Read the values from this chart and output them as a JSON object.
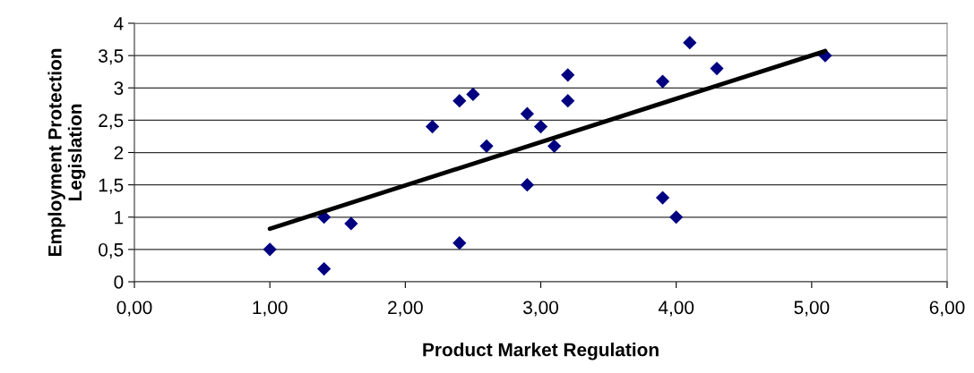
{
  "chart_data": {
    "type": "scatter",
    "xlabel": "Product Market Regulation",
    "ylabel": "Employment Protection\nLegislation",
    "xlim": [
      0,
      6
    ],
    "ylim": [
      0,
      4
    ],
    "xticks": [
      {
        "value": 0,
        "label": "0,00"
      },
      {
        "value": 1,
        "label": "1,00"
      },
      {
        "value": 2,
        "label": "2,00"
      },
      {
        "value": 3,
        "label": "3,00"
      },
      {
        "value": 4,
        "label": "4,00"
      },
      {
        "value": 5,
        "label": "5,00"
      },
      {
        "value": 6,
        "label": "6,00"
      }
    ],
    "yticks": [
      0,
      {
        "value": 0.5,
        "label": "0,5"
      },
      1,
      {
        "value": 1.5,
        "label": "1,5"
      },
      2,
      {
        "value": 2.5,
        "label": "2,5"
      },
      3,
      {
        "value": 3.5,
        "label": "3,5"
      },
      4
    ],
    "grid": "y",
    "legend": false,
    "series": [
      {
        "color": "#000080",
        "marker": "diamond",
        "x": [
          1.0,
          1.4,
          1.4,
          1.6,
          2.2,
          2.4,
          2.4,
          2.5,
          2.6,
          2.9,
          2.9,
          3.0,
          3.1,
          3.2,
          3.2,
          3.9,
          3.9,
          4.0,
          4.1,
          4.3,
          5.1
        ],
        "values": [
          0.5,
          1.0,
          0.2,
          0.9,
          2.4,
          2.8,
          0.6,
          2.9,
          2.1,
          2.6,
          1.5,
          2.4,
          2.1,
          3.2,
          2.8,
          3.1,
          1.3,
          1.0,
          3.7,
          3.3,
          3.5
        ]
      },
      {
        "type": "line",
        "color": "#000000",
        "marker": "none",
        "line_style": "solid",
        "x": [
          1.0,
          5.1
        ],
        "values": [
          0.82,
          3.57
        ]
      }
    ]
  }
}
